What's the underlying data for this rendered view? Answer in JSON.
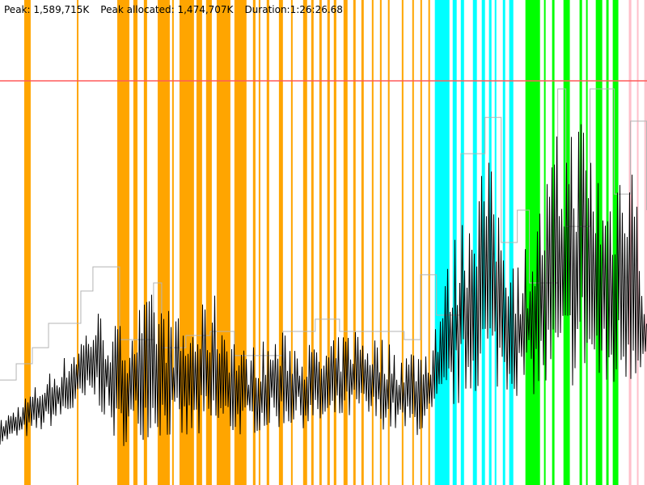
{
  "header": {
    "peak": "Peak: 1,589,715K",
    "peak_allocated": "Peak allocated: 1,474,707K",
    "duration": "Duration:1:26:26.68"
  },
  "chart_data": {
    "type": "line",
    "x_unit": "seconds",
    "xlim": [
      0,
      5186.68
    ],
    "y_unit": "K",
    "ylim": [
      0,
      1907658
    ],
    "grid": false,
    "peak_line": {
      "value": 1589715,
      "color": "#ff5a5a"
    },
    "colors": {
      "orange": "#ffa500",
      "cyan": "#00ffff",
      "green": "#00ff00",
      "pink": "#ffc0cb",
      "committed": "#b4b4b4",
      "used": "#000000"
    },
    "bands": [
      {
        "color": "orange",
        "ranges": [
          [
            194,
            246
          ],
          [
            616,
            629
          ],
          [
            940,
            1037
          ],
          [
            1069,
            1102
          ],
          [
            1153,
            1179
          ],
          [
            1264,
            1361
          ],
          [
            1380,
            1393
          ],
          [
            1439,
            1555
          ],
          [
            1575,
            1620
          ],
          [
            1652,
            1698
          ],
          [
            1737,
            1847
          ],
          [
            1879,
            1976
          ],
          [
            2028,
            2048
          ],
          [
            2074,
            2087
          ],
          [
            2138,
            2158
          ],
          [
            2236,
            2268
          ],
          [
            2333,
            2346
          ],
          [
            2430,
            2462
          ],
          [
            2495,
            2514
          ],
          [
            2560,
            2579
          ],
          [
            2624,
            2644
          ],
          [
            2676,
            2696
          ],
          [
            2754,
            2786
          ],
          [
            2832,
            2851
          ],
          [
            2897,
            2916
          ],
          [
            2981,
            2994
          ],
          [
            3046,
            3059
          ],
          [
            3110,
            3123
          ],
          [
            3221,
            3234
          ],
          [
            3305,
            3318
          ],
          [
            3370,
            3383
          ],
          [
            3434,
            3447
          ]
        ]
      },
      {
        "color": "cyan",
        "ranges": [
          [
            3486,
            3603
          ],
          [
            3629,
            3661
          ],
          [
            3694,
            3720
          ],
          [
            3791,
            3823
          ],
          [
            3862,
            3888
          ],
          [
            3920,
            3940
          ],
          [
            3966,
            3979
          ],
          [
            4031,
            4050
          ],
          [
            4082,
            4115
          ]
        ]
      },
      {
        "color": "green",
        "ranges": [
          [
            4212,
            4329
          ],
          [
            4361,
            4374
          ],
          [
            4426,
            4445
          ],
          [
            4517,
            4568
          ],
          [
            4646,
            4666
          ],
          [
            4698,
            4711
          ],
          [
            4776,
            4828
          ],
          [
            4860,
            4879
          ],
          [
            4912,
            4957
          ]
        ]
      },
      {
        "color": "pink",
        "ranges": [
          [
            5041,
            5061
          ],
          [
            5106,
            5119
          ],
          [
            5165,
            5187
          ]
        ]
      }
    ],
    "series": [
      {
        "key": "committed",
        "points": [
          [
            0,
            413
          ],
          [
            130,
            477
          ],
          [
            259,
            540
          ],
          [
            389,
            636
          ],
          [
            648,
            763
          ],
          [
            745,
            858
          ],
          [
            907,
            858
          ],
          [
            959,
            572
          ],
          [
            1037,
            572
          ],
          [
            1231,
            795
          ],
          [
            1296,
            540
          ],
          [
            1490,
            588
          ],
          [
            1685,
            604
          ],
          [
            1879,
            509
          ],
          [
            2074,
            509
          ],
          [
            2268,
            604
          ],
          [
            2527,
            652
          ],
          [
            2722,
            604
          ],
          [
            3046,
            604
          ],
          [
            3240,
            572
          ],
          [
            3370,
            827
          ],
          [
            3499,
            668
          ],
          [
            3694,
            1303
          ],
          [
            3888,
            1446
          ],
          [
            4018,
            954
          ],
          [
            4147,
            1081
          ],
          [
            4244,
            795
          ],
          [
            4471,
            1558
          ],
          [
            4536,
            1017
          ],
          [
            4730,
            1558
          ],
          [
            4925,
            1144
          ],
          [
            5054,
            1431
          ],
          [
            5184,
            1081
          ]
        ]
      },
      {
        "key": "used",
        "envelope": [
          [
            0,
            159,
            254
          ],
          [
            259,
            191,
            381
          ],
          [
            518,
            254,
            509
          ],
          [
            778,
            318,
            699
          ],
          [
            940,
            143,
            636
          ],
          [
            1231,
            191,
            763
          ],
          [
            1490,
            159,
            636
          ],
          [
            1717,
            175,
            763
          ],
          [
            1944,
            191,
            540
          ],
          [
            2268,
            223,
            604
          ],
          [
            2592,
            223,
            540
          ],
          [
            2851,
            254,
            636
          ],
          [
            3240,
            191,
            540
          ],
          [
            3434,
            191,
            572
          ],
          [
            3629,
            286,
            954
          ],
          [
            3888,
            381,
            1335
          ],
          [
            4147,
            350,
            890
          ],
          [
            4277,
            350,
            1017
          ],
          [
            4471,
            318,
            1399
          ],
          [
            4666,
            413,
            1494
          ],
          [
            4860,
            318,
            1176
          ],
          [
            5054,
            381,
            1462
          ],
          [
            5184,
            477,
            668
          ]
        ]
      }
    ]
  }
}
